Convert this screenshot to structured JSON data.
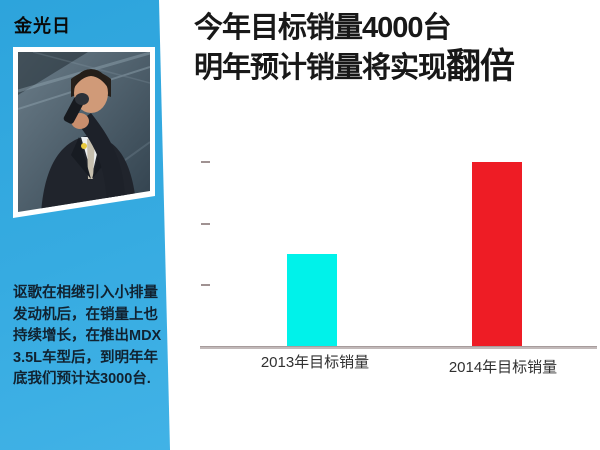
{
  "slide": {
    "speaker_name": "金光日",
    "speaker_bio": "讴歌在相继引入小排量\n发动机后，在销量上也\n持续增长，在推出MDX\n3.5L车型后，到明年年\n底我们预计达3000台.",
    "title_line1": "今年目标销量4000台",
    "title_line2_prefix": "明年预计销量将实现",
    "title_line2_emphasis": "翻倍"
  },
  "colors": {
    "sidebar_blue_top": "#2da4dc",
    "sidebar_blue_bottom": "#41b2e6",
    "title_black": "#181818",
    "bar_2013_cyan": "#00f2ea",
    "bar_2014_red": "#ee1c25",
    "axis_gray": "#c2b9b9",
    "tick_gray": "#a09292"
  },
  "chart_data": {
    "type": "bar",
    "categories": [
      "2013年目标销量",
      "2014年目标销量"
    ],
    "values": [
      4000,
      8000
    ],
    "unit": "台",
    "series_colors": [
      "#00f2ea",
      "#ee1c25"
    ],
    "title": "今年目标销量4000台 明年预计销量将实现翻倍",
    "xlabel": "",
    "ylabel": "",
    "ylim": [
      0,
      8000
    ],
    "ytick_count": 3,
    "grid": false,
    "legend": false,
    "bar_value_labels": false
  }
}
